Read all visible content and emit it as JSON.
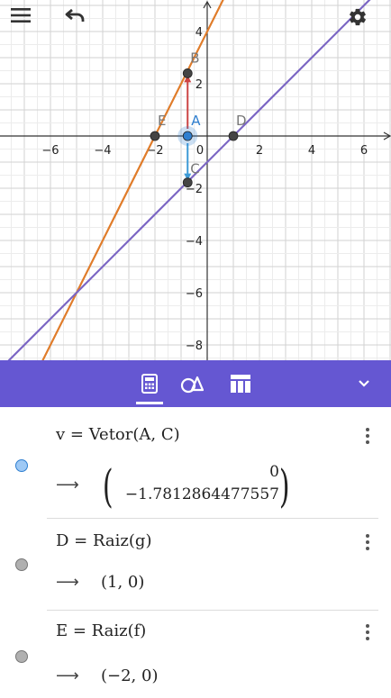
{
  "graph": {
    "x_ticks": [
      "−6",
      "−4",
      "−2",
      "0",
      "2",
      "4",
      "6"
    ],
    "y_ticks": [
      "4",
      "2",
      "−2",
      "−4",
      "−6",
      "−8"
    ],
    "points": [
      {
        "label": "A",
        "x": 0,
        "y": 0
      },
      {
        "label": "B",
        "x": 0,
        "y": 2.4
      },
      {
        "label": "C",
        "x": 0,
        "y": -1.78
      },
      {
        "label": "D",
        "x": 1,
        "y": 0
      },
      {
        "label": "E",
        "x": -2,
        "y": 0
      }
    ],
    "colors": {
      "line_f": "#e07c2a",
      "line_g": "#7b66c4",
      "vector_u": "#cc4444",
      "vector_v": "#3d9ad6",
      "point": "#444444",
      "point_a": "#2f7fd0"
    }
  },
  "toolbar": {
    "icons": [
      "calculator-icon",
      "shapes-icon",
      "table-icon",
      "chevron-down-icon"
    ],
    "color": "#6557d2"
  },
  "algebra": {
    "rows": [
      {
        "definition": "v = Vetor(A, C)",
        "value_top": "0",
        "value_bottom": "−1.7812864477557",
        "dot_color": "#9ec9f5",
        "dot_border": "#2f7fd0"
      },
      {
        "definition": "D = Raiz(g)",
        "value": "(1, 0)",
        "dot_color": "#b0b0b0",
        "dot_border": "#777777"
      },
      {
        "definition": "E = Raiz(f)",
        "value": "(−2, 0)",
        "dot_color": "#b0b0b0",
        "dot_border": "#777777"
      }
    ],
    "arrow_symbol": "⟶"
  }
}
